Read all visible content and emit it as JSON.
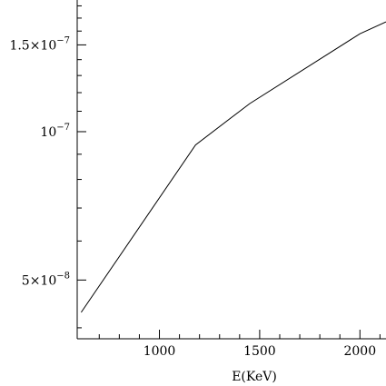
{
  "chart_data": {
    "type": "line",
    "title": "",
    "xlabel": "E(KeV)",
    "ylabel": "",
    "y_scale": "log",
    "grid": false,
    "xlim": [
      590,
      2130
    ],
    "ylim": [
      3.8e-08,
      1.85e-07
    ],
    "x_ticks": [
      {
        "value": 1000,
        "label": "1000"
      },
      {
        "value": 1500,
        "label": "1500"
      },
      {
        "value": 2000,
        "label": "2000"
      }
    ],
    "y_ticks": [
      {
        "value": 5e-08,
        "mantissa": "5×10",
        "exponent": "−8"
      },
      {
        "value": 1e-07,
        "mantissa": "10",
        "exponent": "−7"
      },
      {
        "value": 1.5e-07,
        "mantissa": "1.5×10",
        "exponent": "−7"
      }
    ],
    "series": [
      {
        "x": [
          610,
          1180,
          1450,
          2000,
          2130
        ],
        "y": [
          4.3e-08,
          9.4e-08,
          1.14e-07,
          1.58e-07,
          1.67e-07
        ]
      }
    ],
    "colors": {
      "line": "#000000",
      "background": "#ffffff"
    }
  }
}
